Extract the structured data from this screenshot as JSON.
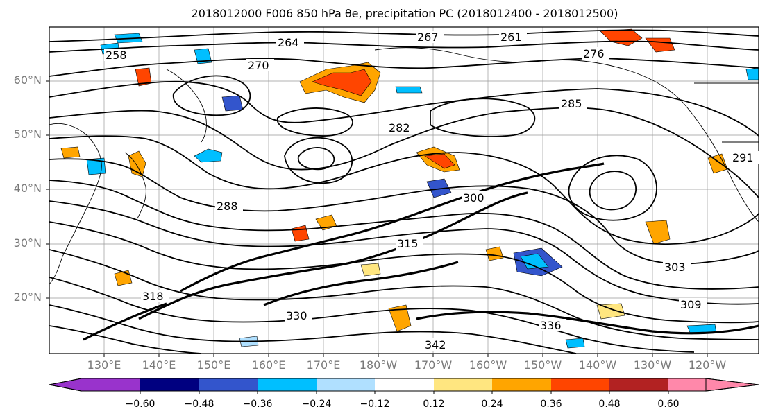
{
  "title": "2018012000 F006 850 hPa θe, precipitation PC (2018012400 - 2018012500)",
  "map": {
    "lat_labels": [
      "60°N",
      "50°N",
      "40°N",
      "30°N",
      "20°N"
    ],
    "lon_labels": [
      "130°E",
      "140°E",
      "150°E",
      "160°E",
      "170°E",
      "180°W",
      "170°W",
      "160°W",
      "150°W",
      "140°W",
      "130°W",
      "120°W"
    ],
    "contour_labels": [
      "258",
      "264",
      "267",
      "261",
      "276",
      "270",
      "285",
      "282",
      "288",
      "318",
      "330",
      "336",
      "342",
      "309",
      "300",
      "315",
      "303",
      "291"
    ]
  },
  "colorbar": {
    "tick_labels": [
      "−0.60",
      "−0.48",
      "−0.36",
      "−0.24",
      "−0.12",
      "0.12",
      "0.24",
      "0.36",
      "0.48",
      "0.60"
    ],
    "colors": [
      "#9933cc",
      "#000080",
      "#3355cc",
      "#00bfff",
      "#b0e0ff",
      "#ffffff",
      "#ffe680",
      "#ffa500",
      "#ff4500",
      "#b22222",
      "#ff88aa"
    ]
  }
}
